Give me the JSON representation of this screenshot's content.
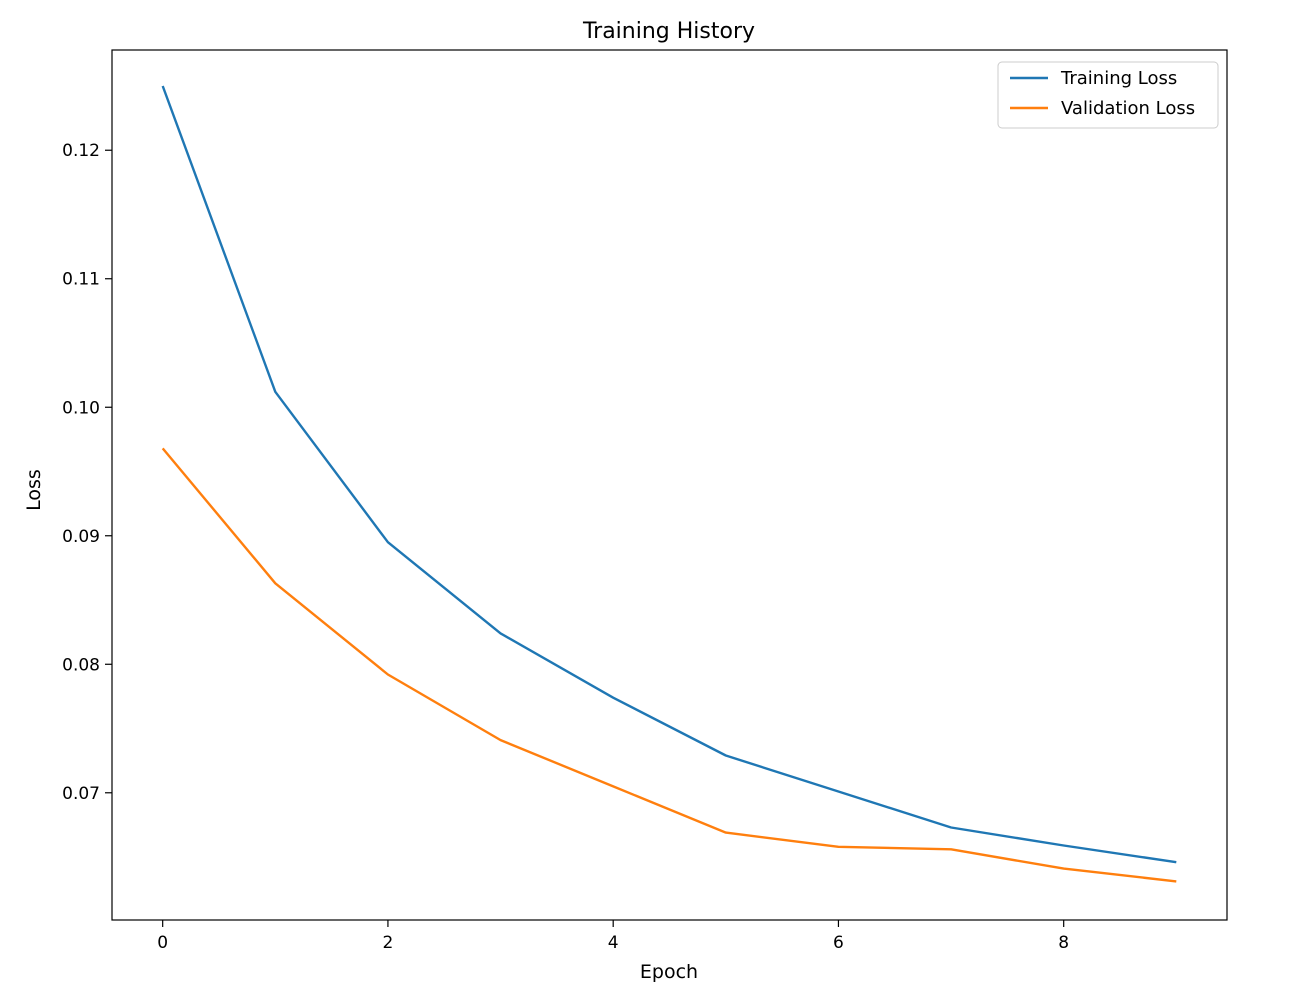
{
  "chart_data": {
    "type": "line",
    "title": "Training History",
    "xlabel": "Epoch",
    "ylabel": "Loss",
    "xlim": [
      -0.45,
      9.45
    ],
    "ylim": [
      0.0601,
      0.1278
    ],
    "xticks": [
      0,
      2,
      4,
      6,
      8
    ],
    "xtick_labels": [
      "0",
      "2",
      "4",
      "6",
      "8"
    ],
    "yticks": [
      0.07,
      0.08,
      0.09,
      0.1,
      0.11,
      0.12
    ],
    "ytick_labels": [
      "0.07",
      "0.08",
      "0.09",
      "0.10",
      "0.11",
      "0.12"
    ],
    "grid": false,
    "legend_position": "top-right",
    "x": [
      0,
      1,
      2,
      3,
      4,
      5,
      6,
      7,
      8,
      9
    ],
    "series": [
      {
        "name": "Training Loss",
        "color": "#1f77b4",
        "values": [
          0.125,
          0.1012,
          0.0895,
          0.0824,
          0.0774,
          0.0729,
          0.0701,
          0.0673,
          0.0659,
          0.0646
        ]
      },
      {
        "name": "Validation Loss",
        "color": "#ff7f0e",
        "values": [
          0.0968,
          0.0863,
          0.0792,
          0.0741,
          0.0705,
          0.0669,
          0.0658,
          0.0656,
          0.0641,
          0.0631
        ]
      }
    ]
  }
}
